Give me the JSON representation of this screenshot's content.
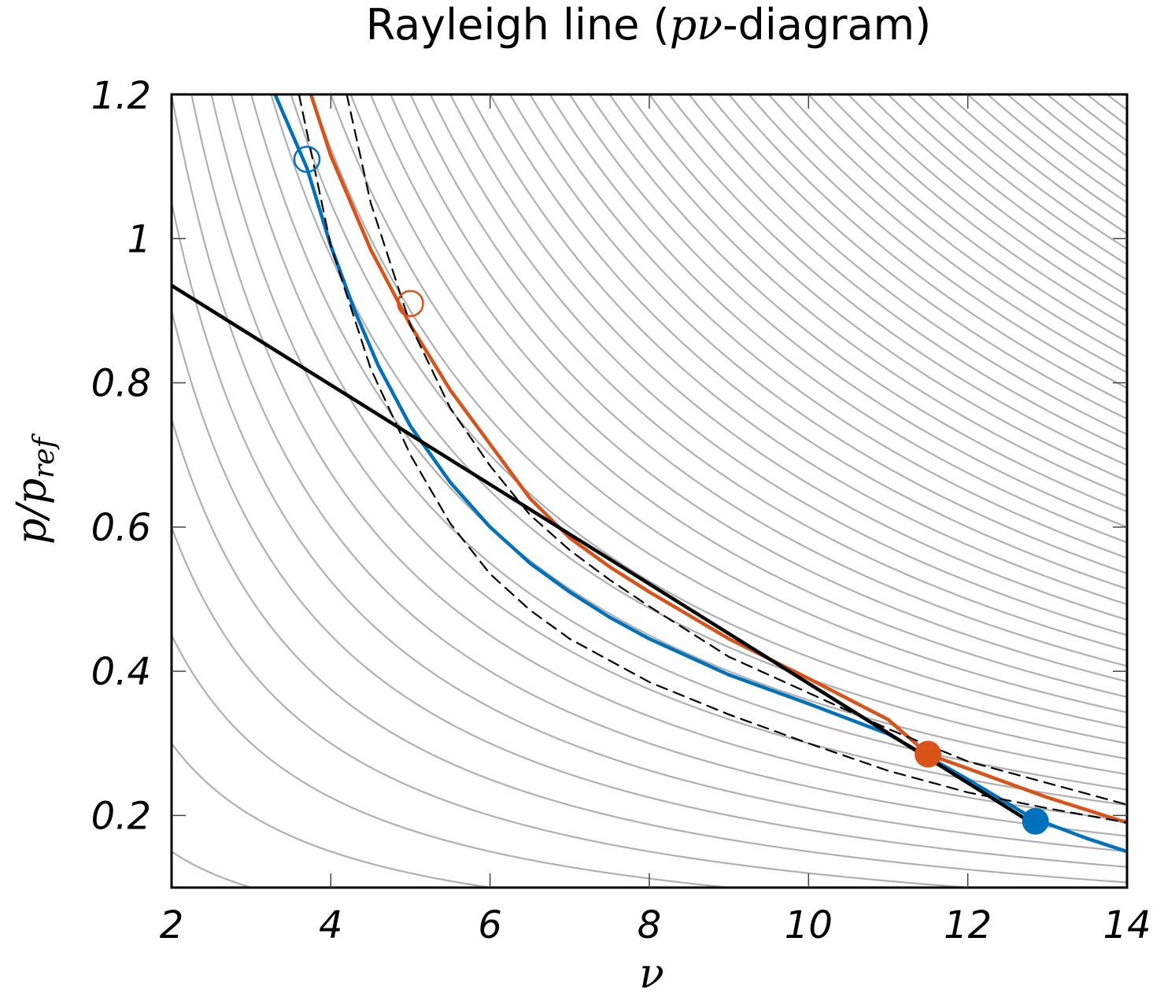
{
  "chart_data": {
    "type": "line",
    "title": {
      "prefix": "Rayleigh line (",
      "math": "pν",
      "suffix": "-diagram)"
    },
    "xlabel": "ν",
    "ylabel": {
      "main": "p/p",
      "sub": "ref"
    },
    "xlim": [
      2,
      14
    ],
    "ylim": [
      0.1,
      1.2
    ],
    "x_ticks": [
      "2",
      "4",
      "6",
      "8",
      "10",
      "12",
      "14"
    ],
    "y_ticks": [
      "0.2",
      "0.4",
      "0.6",
      "0.8",
      "1"
    ],
    "y_top_label": "1.2",
    "grid": false,
    "background_isotherms": {
      "form": "p*v = c",
      "c_values": [
        0.3,
        0.6,
        0.9,
        1.2,
        1.5,
        1.8,
        2.1,
        2.4,
        2.7,
        3.0,
        3.3,
        3.6,
        3.9,
        4.2,
        4.5,
        4.8,
        5.1,
        5.4,
        5.7,
        6.0,
        6.3,
        6.6,
        6.9,
        7.2,
        7.5,
        7.8,
        8.1,
        8.4,
        8.7,
        9.0,
        9.3,
        9.6,
        9.9,
        10.2,
        10.5,
        10.8,
        11.1,
        11.4,
        11.7,
        12.0,
        12.3,
        12.6,
        12.9,
        13.2,
        13.5,
        13.8,
        14.1,
        14.4,
        14.7,
        15.0,
        15.3,
        15.6,
        15.9,
        16.2,
        16.5,
        16.8
      ],
      "color": "#b0b0b0"
    },
    "series": [
      {
        "style": "solid",
        "color": "#0072bd",
        "x": [
          3.3,
          3.5,
          3.7,
          4.0,
          4.3,
          4.6,
          5.0,
          5.5,
          6.0,
          6.5,
          7.0,
          7.5,
          8.0,
          9.0,
          10.0,
          11.0,
          12.0,
          12.8,
          13.5,
          14.0
        ],
        "y": [
          1.2,
          1.149,
          1.098,
          0.99,
          0.9,
          0.823,
          0.74,
          0.662,
          0.6,
          0.55,
          0.51,
          0.475,
          0.445,
          0.395,
          0.355,
          0.313,
          0.25,
          0.197,
          0.168,
          0.15
        ]
      },
      {
        "style": "solid",
        "color": "#d95319",
        "x": [
          3.75,
          4.0,
          4.5,
          5.0,
          5.5,
          6.0,
          6.5,
          7.0,
          7.5,
          8.0,
          9.0,
          10.0,
          11.0,
          11.5,
          12.0,
          13.0,
          14.0
        ],
        "y": [
          1.2,
          1.115,
          0.985,
          0.88,
          0.79,
          0.715,
          0.64,
          0.585,
          0.545,
          0.51,
          0.445,
          0.39,
          0.333,
          0.285,
          0.265,
          0.225,
          0.19
        ]
      },
      {
        "style": "dashed",
        "color": "#000000",
        "x": [
          3.6,
          4.0,
          4.5,
          5.0,
          5.5,
          6.0,
          6.5,
          7.0,
          8.0,
          9.0,
          10.0,
          11.0,
          12.0,
          13.0,
          14.0
        ],
        "y": [
          1.2,
          0.99,
          0.82,
          0.7,
          0.605,
          0.535,
          0.485,
          0.445,
          0.385,
          0.34,
          0.3,
          0.262,
          0.232,
          0.21,
          0.19
        ]
      },
      {
        "style": "dashed",
        "color": "#000000",
        "x": [
          4.2,
          4.5,
          5.0,
          5.5,
          6.0,
          6.5,
          7.0,
          7.5,
          8.0,
          9.0,
          10.0,
          11.0,
          12.0,
          13.0,
          14.0
        ],
        "y": [
          1.2,
          1.05,
          0.88,
          0.765,
          0.685,
          0.617,
          0.568,
          0.527,
          0.49,
          0.42,
          0.37,
          0.32,
          0.275,
          0.245,
          0.215
        ]
      },
      {
        "style": "solid",
        "color": "#000000",
        "x": [
          2,
          12.8
        ],
        "y": [
          0.935,
          0.19
        ]
      }
    ],
    "markers": [
      {
        "x": 3.7,
        "y": 1.11,
        "color": "#0072bd",
        "fill": false
      },
      {
        "x": 5.0,
        "y": 0.91,
        "color": "#d95319",
        "fill": false
      },
      {
        "x": 11.5,
        "y": 0.285,
        "color": "#d95319",
        "fill": true
      },
      {
        "x": 12.85,
        "y": 0.192,
        "color": "#0072bd",
        "fill": true
      }
    ]
  }
}
